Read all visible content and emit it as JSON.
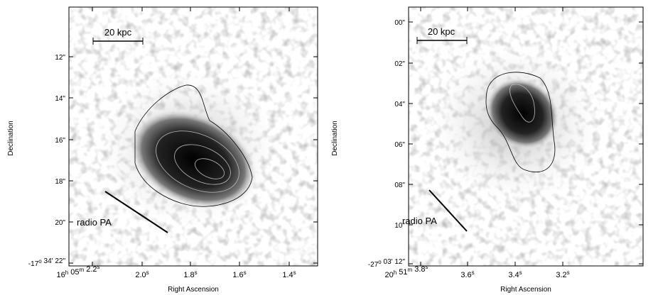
{
  "panels": [
    {
      "ylabel": "Declination",
      "xlabel": "Right Ascension",
      "scale_bar": "20 kpc",
      "annotation": "radio PA",
      "yticks": [
        [
          {
            "text": "12\""
          }
        ],
        [
          {
            "text": "14\""
          }
        ],
        [
          {
            "text": "16\""
          }
        ],
        [
          {
            "text": "18\""
          }
        ],
        [
          {
            "text": "20\""
          }
        ],
        [
          {
            "text": "-17",
            "sup": "o"
          },
          {
            "text": " 34' 22\""
          }
        ]
      ],
      "xticks": [
        [
          {
            "text": "16",
            "sup": "h"
          },
          {
            "text": " 05",
            "sup": "m"
          },
          {
            "text": " 2.2",
            "sup": "s"
          }
        ],
        [
          {
            "text": "2.0",
            "sup": "s"
          }
        ],
        [
          {
            "text": "1.8",
            "sup": "s"
          }
        ],
        [
          {
            "text": "1.6",
            "sup": "s"
          }
        ],
        [
          {
            "text": "1.4",
            "sup": "s"
          }
        ]
      ]
    },
    {
      "ylabel": "Declination",
      "xlabel": "Right Ascension",
      "scale_bar": "20 kpc",
      "annotation": "radio PA",
      "yticks": [
        [
          {
            "text": "00\""
          }
        ],
        [
          {
            "text": "02\""
          }
        ],
        [
          {
            "text": "04\""
          }
        ],
        [
          {
            "text": "06\""
          }
        ],
        [
          {
            "text": "08\""
          }
        ],
        [
          {
            "text": "10\""
          }
        ],
        [
          {
            "text": "-27",
            "sup": "o"
          },
          {
            "text": " 03' 12\""
          }
        ]
      ],
      "xticks": [
        [
          {
            "text": "20",
            "sup": "h"
          },
          {
            "text": " 51",
            "sup": "m"
          },
          {
            "text": " 3.8",
            "sup": "s"
          }
        ],
        [
          {
            "text": "3.6",
            "sup": "s"
          }
        ],
        [
          {
            "text": "3.4",
            "sup": "s"
          }
        ],
        [
          {
            "text": "3.2",
            "sup": "s"
          }
        ]
      ]
    }
  ]
}
